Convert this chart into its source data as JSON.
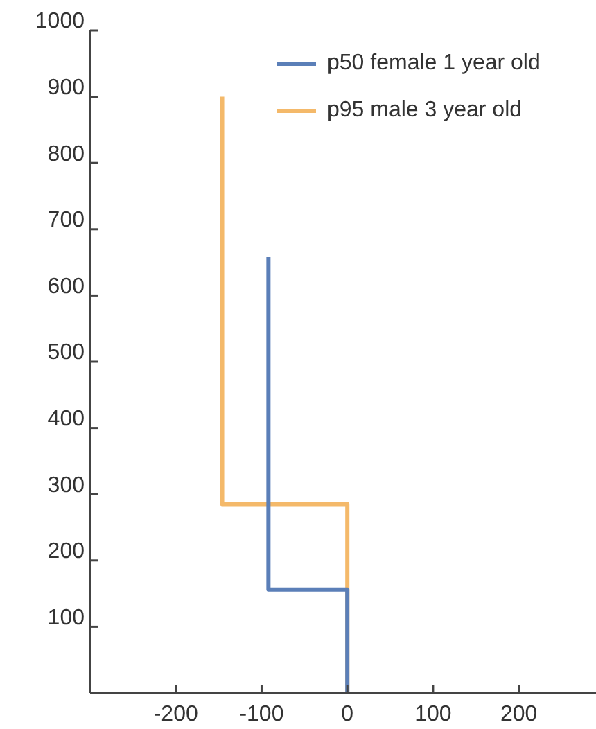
{
  "chart_data": {
    "type": "line",
    "xlim": [
      -300,
      290
    ],
    "xticks": [
      -200,
      -100,
      0,
      100,
      200
    ],
    "ylim": [
      0,
      1000
    ],
    "yticks": [
      100,
      200,
      300,
      400,
      500,
      600,
      700,
      800,
      900,
      1000
    ],
    "legend": "top right",
    "grid": false,
    "marker": "none",
    "line_style": "solid",
    "series": [
      {
        "name": "p50 female 1 year old",
        "color": "#5b7fb8",
        "x": [
          0,
          0,
          -92,
          -92
        ],
        "values": [
          0,
          156,
          156,
          658
        ]
      },
      {
        "name": "p95 male 3 year old",
        "color": "#f4b96a",
        "x": [
          0,
          0,
          -146,
          -146
        ],
        "values": [
          0,
          285,
          285,
          900
        ]
      }
    ]
  }
}
